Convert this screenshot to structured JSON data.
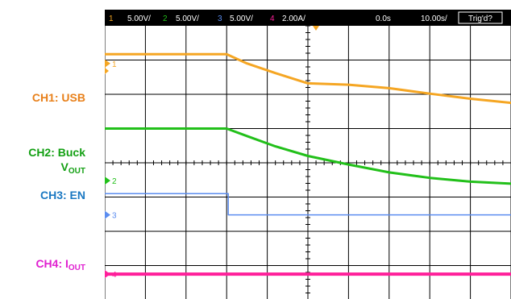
{
  "channel_labels": [
    {
      "channel": "CH1",
      "text": "CH1: USB",
      "color": "#e8801a"
    },
    {
      "channel": "CH2",
      "text": "CH2: Buck",
      "sub_prefix": "V",
      "sub": "OUT",
      "color": "#13a013"
    },
    {
      "channel": "CH3",
      "text": "CH3: EN",
      "color": "#1a78c2"
    },
    {
      "channel": "CH4",
      "text": "CH4: I",
      "sub": "OUT",
      "color": "#e01fd0"
    }
  ],
  "header": {
    "ch1_num": "1",
    "ch1_scale": "5.00V/",
    "ch2_num": "2",
    "ch2_scale": "5.00V/",
    "ch3_num": "3",
    "ch3_scale": "5.00V/",
    "ch4_num": "4",
    "ch4_scale": "2.00A/",
    "time_offset": "0.0s",
    "time_scale": "10.00s/",
    "trigger_status": "Trig'd?"
  },
  "colors": {
    "ch1": "#f5a623",
    "ch2": "#22c01a",
    "ch3": "#5b8df0",
    "ch4": "#ff1f9a",
    "grid": "#000000",
    "background": "#ffffff"
  },
  "chart_data": {
    "type": "line",
    "grid": true,
    "x_divisions": 10,
    "y_divisions": 8,
    "xlim": [
      -50,
      50
    ],
    "series": [
      {
        "name": "CH1: USB",
        "channel": "1",
        "color_key": "ch1",
        "points": [
          [
            -50,
            7.17
          ],
          [
            -20,
            7.17
          ],
          [
            -15,
            6.9
          ],
          [
            -8,
            6.62
          ],
          [
            0,
            6.32
          ],
          [
            10,
            6.28
          ],
          [
            20,
            6.18
          ],
          [
            30,
            6.02
          ],
          [
            40,
            5.87
          ],
          [
            50,
            5.75
          ]
        ]
      },
      {
        "name": "CH2: Buck VOUT",
        "channel": "2",
        "color_key": "ch2",
        "points": [
          [
            -50,
            5.0
          ],
          [
            -20,
            5.0
          ],
          [
            -15,
            4.78
          ],
          [
            -8,
            4.48
          ],
          [
            0,
            4.2
          ],
          [
            10,
            3.95
          ],
          [
            20,
            3.72
          ],
          [
            30,
            3.56
          ],
          [
            40,
            3.45
          ],
          [
            50,
            3.39
          ]
        ]
      },
      {
        "name": "CH3: EN",
        "channel": "3",
        "color_key": "ch3",
        "points": [
          [
            -50,
            3.1
          ],
          [
            -19.6,
            3.1
          ],
          [
            -19.6,
            2.48
          ],
          [
            50,
            2.48
          ]
        ]
      },
      {
        "name": "CH4: IOUT",
        "channel": "4",
        "color_key": "ch4",
        "points": [
          [
            -50,
            0.75
          ],
          [
            50,
            0.75
          ]
        ]
      }
    ],
    "ground_markers": [
      {
        "channel": "1",
        "level": 6.9
      },
      {
        "channel": "2",
        "level": 3.48
      },
      {
        "channel": "3",
        "level": 2.48
      },
      {
        "channel": "4",
        "level": 0.75
      }
    ]
  }
}
